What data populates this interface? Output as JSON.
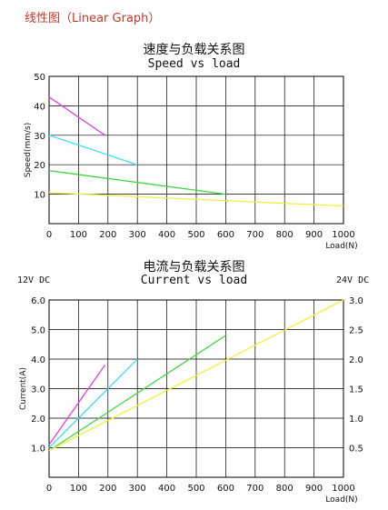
{
  "page_title": "线性图（Linear Graph）",
  "chart_data": [
    {
      "type": "line",
      "title": "速度与负载关系图",
      "subtitle": "Speed vs load",
      "xlabel": "Load(N)",
      "ylabel": "Speed(mm/s)",
      "xlim": [
        0,
        1000
      ],
      "ylim": [
        0,
        50
      ],
      "x_ticks": [
        "0",
        "100",
        "200",
        "300",
        "400",
        "500",
        "600",
        "700",
        "800",
        "900",
        "1000"
      ],
      "y_ticks": [
        "10",
        "20",
        "30",
        "40",
        "50"
      ],
      "grid": true,
      "series": [
        {
          "color": "#e040e0",
          "x": [
            0,
            190
          ],
          "y": [
            43,
            30
          ]
        },
        {
          "color": "#40e0f0",
          "x": [
            0,
            300
          ],
          "y": [
            30,
            20
          ]
        },
        {
          "color": "#40d840",
          "x": [
            0,
            600
          ],
          "y": [
            18,
            10
          ]
        },
        {
          "color": "#f0f040",
          "x": [
            0,
            1000
          ],
          "y": [
            10.5,
            6
          ]
        }
      ]
    },
    {
      "type": "line",
      "title": "电流与负载关系图",
      "subtitle": "Current vs load",
      "xlabel": "Load(N)",
      "ylabel": "Current(A)",
      "left_axis_label": "12V DC",
      "right_axis_label": "24V DC",
      "xlim": [
        0,
        1000
      ],
      "ylim": [
        0,
        6
      ],
      "y2lim": [
        0,
        3
      ],
      "x_ticks": [
        "0",
        "100",
        "200",
        "300",
        "400",
        "500",
        "600",
        "700",
        "800",
        "900",
        "1000"
      ],
      "y_ticks": [
        "1.0",
        "2.0",
        "3.0",
        "4.0",
        "5.0",
        "6.0"
      ],
      "y2_ticks": [
        "0.5",
        "1.0",
        "1.5",
        "2.0",
        "2.5",
        "3.0"
      ],
      "grid": true,
      "series": [
        {
          "color": "#e040e0",
          "x": [
            0,
            190
          ],
          "y": [
            1.1,
            3.8
          ]
        },
        {
          "color": "#40e0f0",
          "x": [
            0,
            300
          ],
          "y": [
            1.0,
            4.0
          ]
        },
        {
          "color": "#40d840",
          "x": [
            0,
            600
          ],
          "y": [
            0.9,
            4.8
          ]
        },
        {
          "color": "#f0f040",
          "x": [
            0,
            1000
          ],
          "y": [
            0.9,
            6.0
          ]
        }
      ]
    }
  ]
}
